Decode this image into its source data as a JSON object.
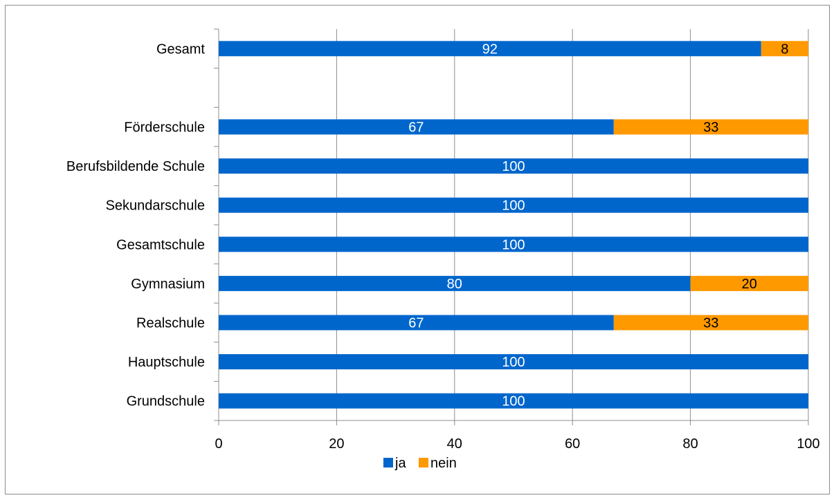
{
  "chart_data": {
    "type": "bar",
    "orientation": "horizontal",
    "stacked": true,
    "categories": [
      "Gesamt",
      "",
      "Förderschule",
      "Berufsbildende Schule",
      "Sekundarschule",
      "Gesamtschule",
      "Gymnasium",
      "Realschule",
      "Hauptschule",
      "Grundschule"
    ],
    "series": [
      {
        "name": "ja",
        "color": "#0066cc",
        "label_color": "#ffffff",
        "values": [
          92,
          null,
          67,
          100,
          100,
          100,
          80,
          67,
          100,
          100
        ]
      },
      {
        "name": "nein",
        "color": "#ff9900",
        "label_color": "#000000",
        "values": [
          8,
          null,
          33,
          0,
          0,
          0,
          20,
          33,
          0,
          0
        ]
      }
    ],
    "xlim": [
      0,
      100
    ],
    "xticks": [
      "0",
      "20",
      "40",
      "60",
      "80",
      "100"
    ],
    "grid": "vertical",
    "legend": "bottom",
    "title": "",
    "xlabel": "",
    "ylabel": ""
  }
}
